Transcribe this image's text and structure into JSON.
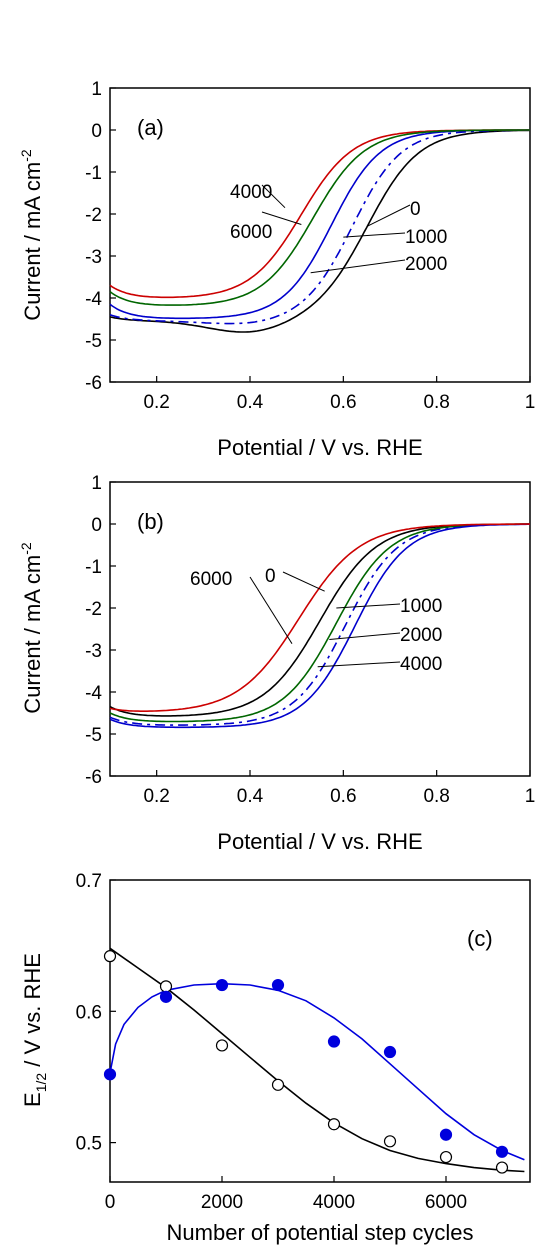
{
  "chart_data": [
    {
      "type": "line",
      "panel_label": "(a)",
      "xlabel": "Potential / V vs. RHE",
      "ylabel_main": "Current / mA cm",
      "ylabel_sup": "-2",
      "xlim": [
        0.1,
        1.0
      ],
      "ylim": [
        -6,
        1
      ],
      "xticks": [
        0.2,
        0.4,
        0.6,
        0.8,
        1
      ],
      "xtick_labels": [
        "0.2",
        "0.4",
        "0.6",
        "0.8",
        "1"
      ],
      "yticks": [
        1,
        0,
        -1,
        -2,
        -3,
        -4,
        -5,
        -6
      ],
      "ytick_labels": [
        "1",
        "0",
        "-1",
        "-2",
        "-3",
        "-4",
        "-5",
        "-6"
      ],
      "series": [
        {
          "name": "0",
          "color": "#000000",
          "dash": false,
          "plateau": -4.55,
          "dip": 0.3,
          "e_half": 0.652,
          "width": 0.055,
          "start": -4.45
        },
        {
          "name": "1000",
          "color": "#0000cc",
          "dash": true,
          "plateau": -4.55,
          "dip": 0.1,
          "e_half": 0.62,
          "width": 0.052,
          "start": -4.4
        },
        {
          "name": "2000",
          "color": "#0000cc",
          "dash": false,
          "plateau": -4.5,
          "dip": 0.0,
          "e_half": 0.575,
          "width": 0.052,
          "start": -4.15
        },
        {
          "name": "4000",
          "color": "#cc0000",
          "dash": false,
          "plateau": -4.02,
          "dip": 0.0,
          "e_half": 0.51,
          "width": 0.055,
          "start": -3.7
        },
        {
          "name": "6000",
          "color": "#006600",
          "dash": false,
          "plateau": -4.2,
          "dip": 0.0,
          "e_half": 0.535,
          "width": 0.055,
          "start": -3.85
        }
      ],
      "labels": [
        {
          "text": "4000",
          "curve_x": 0.475,
          "curve_y": -1.85
        },
        {
          "text": "6000",
          "curve_x": 0.51,
          "curve_y": -2.25
        },
        {
          "text": "0",
          "curve_x": 0.65,
          "curve_y": -2.3
        },
        {
          "text": "1000",
          "curve_x": 0.6,
          "curve_y": -2.55
        },
        {
          "text": "2000",
          "curve_x": 0.53,
          "curve_y": -3.4
        }
      ]
    },
    {
      "type": "line",
      "panel_label": "(b)",
      "xlabel": "Potential / V vs. RHE",
      "ylabel_main": "Current / mA cm",
      "ylabel_sup": "-2",
      "xlim": [
        0.1,
        1.0
      ],
      "ylim": [
        -6,
        1
      ],
      "xticks": [
        0.2,
        0.4,
        0.6,
        0.8,
        1
      ],
      "xtick_labels": [
        "0.2",
        "0.4",
        "0.6",
        "0.8",
        "1"
      ],
      "yticks": [
        1,
        0,
        -1,
        -2,
        -3,
        -4,
        -5,
        -6
      ],
      "ytick_labels": [
        "1",
        "0",
        "-1",
        "-2",
        "-3",
        "-4",
        "-5",
        "-6"
      ],
      "series": [
        {
          "name": "0",
          "color": "#000000",
          "dash": false,
          "plateau": -4.6,
          "dip": 0.0,
          "e_half": 0.55,
          "width": 0.06,
          "start": -4.35
        },
        {
          "name": "1000",
          "color": "#0000cc",
          "dash": true,
          "plateau": -4.8,
          "dip": 0.0,
          "e_half": 0.605,
          "width": 0.055,
          "start": -4.6
        },
        {
          "name": "2000",
          "color": "#006600",
          "dash": false,
          "plateau": -4.72,
          "dip": 0.0,
          "e_half": 0.585,
          "width": 0.057,
          "start": -4.5
        },
        {
          "name": "4000",
          "color": "#0000cc",
          "dash": false,
          "plateau": -4.85,
          "dip": 0.0,
          "e_half": 0.625,
          "width": 0.055,
          "start": -4.65
        },
        {
          "name": "6000",
          "color": "#cc0000",
          "dash": false,
          "plateau": -4.5,
          "dip": 0.0,
          "e_half": 0.505,
          "width": 0.065,
          "start": -4.4
        }
      ],
      "labels": [
        {
          "text": "0",
          "curve_x": 0.56,
          "curve_y": -1.6
        },
        {
          "text": "6000",
          "curve_x": 0.49,
          "curve_y": -2.85
        },
        {
          "text": "1000",
          "curve_x": 0.585,
          "curve_y": -2.0
        },
        {
          "text": "2000",
          "curve_x": 0.57,
          "curve_y": -2.75
        },
        {
          "text": "4000",
          "curve_x": 0.545,
          "curve_y": -3.4
        }
      ]
    },
    {
      "type": "scatter",
      "panel_label": "(c)",
      "xlabel": "Number of potential step cycles",
      "ylabel_main": "E",
      "ylabel_sub": "1/2",
      "ylabel_rest": " / V vs. RHE",
      "xlim": [
        0,
        7500
      ],
      "ylim": [
        0.47,
        0.7
      ],
      "xticks": [
        0,
        2000,
        4000,
        6000
      ],
      "xtick_labels": [
        "0",
        "2000",
        "4000",
        "6000"
      ],
      "yticks": [
        0.5,
        0.6,
        0.7
      ],
      "ytick_labels": [
        "0.5",
        "0.6",
        "0.7"
      ],
      "series": [
        {
          "name": "open",
          "marker": "open-circle",
          "color": "#000000",
          "x": [
            0,
            1000,
            2000,
            3000,
            4000,
            5000,
            6000,
            7000
          ],
          "y": [
            0.642,
            0.619,
            0.574,
            0.544,
            0.514,
            0.501,
            0.489,
            0.481
          ]
        },
        {
          "name": "filled",
          "marker": "filled-circle",
          "color": "#0000dd",
          "x": [
            0,
            1000,
            2000,
            3000,
            4000,
            5000,
            6000,
            7000
          ],
          "y": [
            0.552,
            0.611,
            0.62,
            0.62,
            0.577,
            0.569,
            0.506,
            0.493
          ]
        }
      ],
      "fits": [
        {
          "name": "open-fit",
          "color": "#000000",
          "x": [
            0,
            500,
            1000,
            1500,
            2000,
            2500,
            3000,
            3500,
            4000,
            4500,
            5000,
            5500,
            6000,
            6500,
            7000,
            7400
          ],
          "y": [
            0.648,
            0.633,
            0.618,
            0.601,
            0.583,
            0.565,
            0.547,
            0.53,
            0.515,
            0.503,
            0.494,
            0.488,
            0.484,
            0.481,
            0.479,
            0.478
          ]
        },
        {
          "name": "filled-fit",
          "color": "#0000dd",
          "x": [
            0,
            100,
            250,
            500,
            750,
            1000,
            1500,
            2000,
            2500,
            3000,
            3500,
            4000,
            4500,
            5000,
            5500,
            6000,
            6500,
            7000,
            7400
          ],
          "y": [
            0.553,
            0.575,
            0.59,
            0.603,
            0.611,
            0.616,
            0.62,
            0.621,
            0.62,
            0.616,
            0.608,
            0.595,
            0.579,
            0.56,
            0.541,
            0.522,
            0.506,
            0.494,
            0.487
          ]
        }
      ]
    }
  ]
}
